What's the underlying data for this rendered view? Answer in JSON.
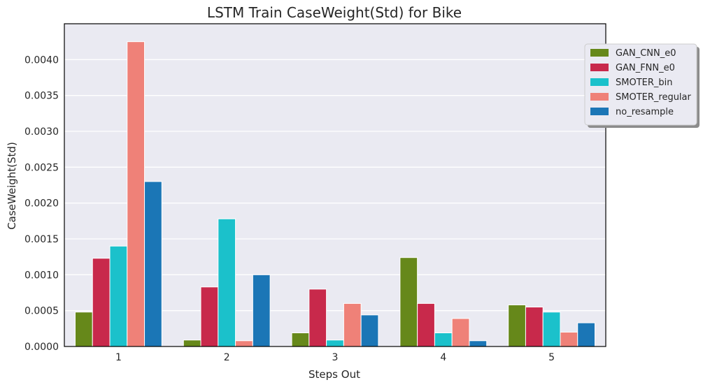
{
  "chart_data": {
    "type": "bar",
    "title": "LSTM Train CaseWeight(Std) for Bike",
    "xlabel": "Steps Out",
    "ylabel": "CaseWeight(Std)",
    "categories": [
      "1",
      "2",
      "3",
      "4",
      "5"
    ],
    "ylim": [
      0,
      0.0045
    ],
    "yticks": [
      "0.0000",
      "0.0005",
      "0.0010",
      "0.0015",
      "0.0020",
      "0.0025",
      "0.0030",
      "0.0035",
      "0.0040"
    ],
    "grid": true,
    "legend_position": "top-right",
    "series": [
      {
        "name": "GAN_CNN_e0",
        "color": "#66881a",
        "values": [
          0.00048,
          9e-05,
          0.00019,
          0.00124,
          0.00058
        ]
      },
      {
        "name": "GAN_FNN_e0",
        "color": "#c8294b",
        "values": [
          0.00123,
          0.00083,
          0.0008,
          0.0006,
          0.00055
        ]
      },
      {
        "name": "SMOTER_bin",
        "color": "#1bc1cb",
        "values": [
          0.0014,
          0.00178,
          9e-05,
          0.00019,
          0.00048
        ]
      },
      {
        "name": "SMOTER_regular",
        "color": "#ef8178",
        "values": [
          0.00425,
          8e-05,
          0.0006,
          0.00039,
          0.0002
        ]
      },
      {
        "name": "no_resample",
        "color": "#1b76b6",
        "values": [
          0.0023,
          0.001,
          0.00044,
          8e-05,
          0.00033
        ]
      }
    ]
  }
}
